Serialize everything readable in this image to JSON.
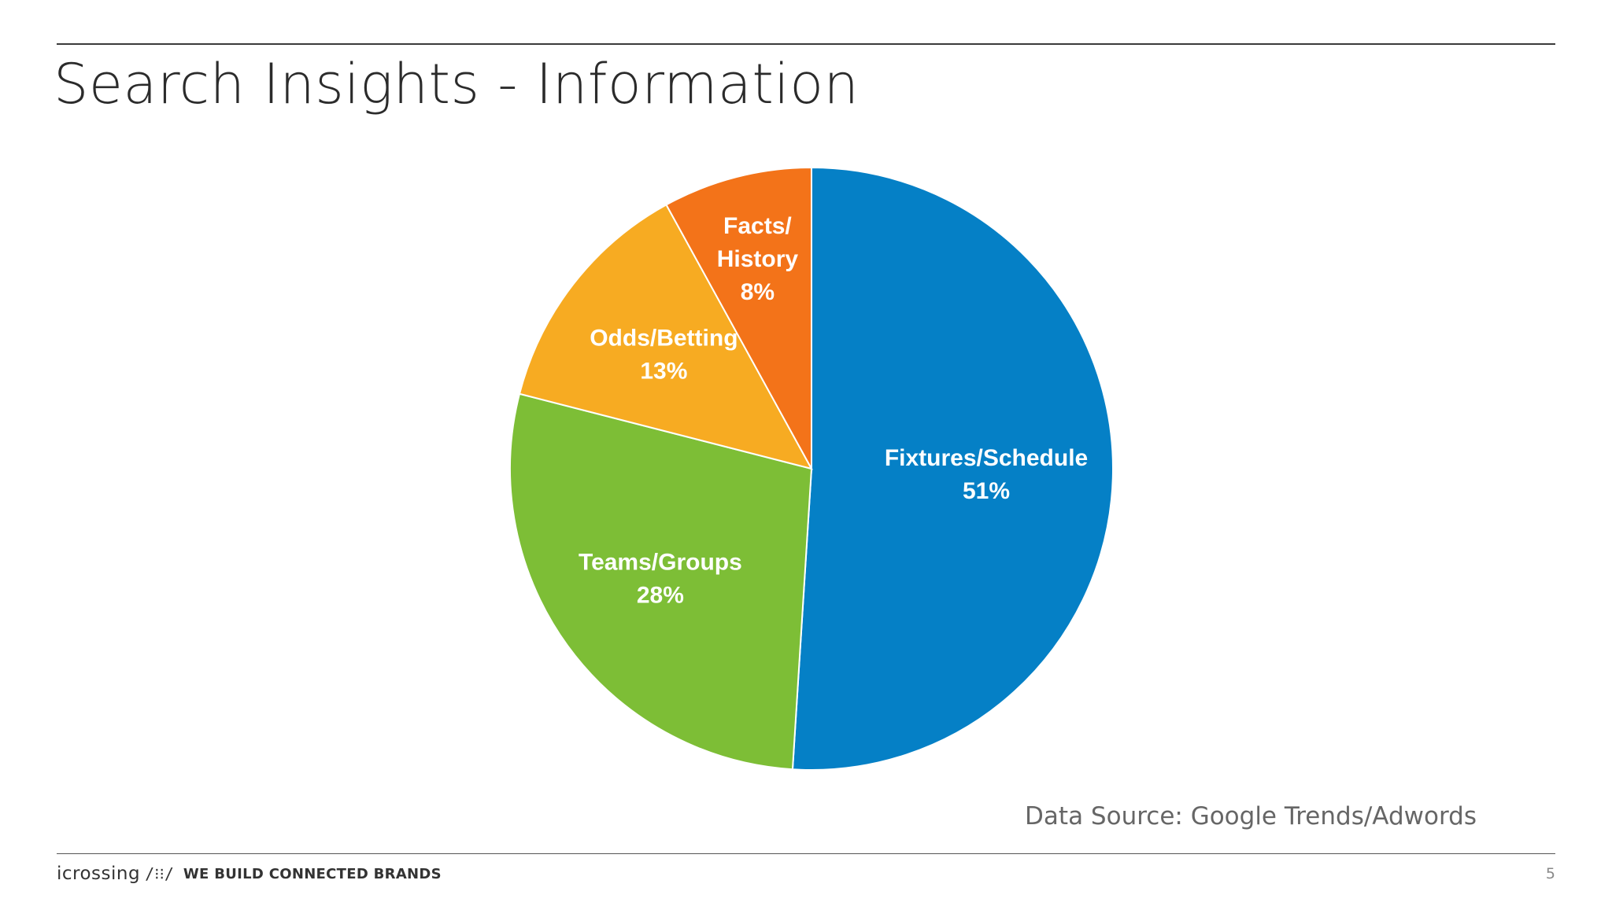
{
  "slide": {
    "title": "Search Insights - Information",
    "source_note": "Data Source: Google Trends/Adwords",
    "page_number": "5"
  },
  "footer": {
    "logo_text": "icrossing",
    "logo_mark": "/⁝⁝/",
    "tagline": "WE BUILD CONNECTED BRANDS"
  },
  "chart_data": {
    "type": "pie",
    "start": "12 o'clock, clockwise",
    "slices": [
      {
        "label": "Fixtures/Schedule",
        "label_lines": [
          "Fixtures/Schedule"
        ],
        "value_label": "51%",
        "value": 51,
        "color": "#0580C6"
      },
      {
        "label": "Teams/Groups",
        "label_lines": [
          "Teams/Groups"
        ],
        "value_label": "28%",
        "value": 28,
        "color": "#7DBE36"
      },
      {
        "label": "Odds/Betting",
        "label_lines": [
          "Odds/Betting"
        ],
        "value_label": "13%",
        "value": 13,
        "color": "#F7AB22"
      },
      {
        "label": "Facts/ History",
        "label_lines": [
          "Facts/",
          "History"
        ],
        "value_label": "8%",
        "value": 8,
        "color": "#F37319"
      }
    ],
    "legend": "none",
    "data_labels": "inside slices"
  }
}
